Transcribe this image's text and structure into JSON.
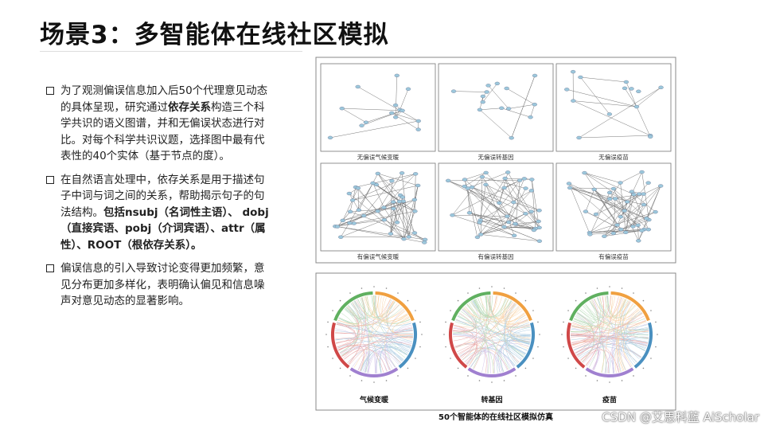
{
  "title": "场景3：多智能体在线社区模拟",
  "bullets": [
    {
      "parts": [
        {
          "text": "为了观测偏误信息加入后50个代理意见动态的具体呈现，研究通过",
          "bold": false
        },
        {
          "text": "依存关系",
          "bold": true
        },
        {
          "text": "构造三个科学共识的语义图谱，并和无偏误状态进行对比。对每个科学共识议题，选择图中最有代表性的40个实体（基于节点的度）。",
          "bold": false
        }
      ]
    },
    {
      "parts": [
        {
          "text": "在自然语言处理中，依存关系是用于描述句子中词与词之间的关系，帮助揭示句子的句法结构。",
          "bold": false
        },
        {
          "text": "包括nsubj（名词性主语）、 dobj（直接宾语、pobj（介词宾语）、attr（属性）、ROOT（根依存关系）。",
          "bold": true
        }
      ]
    },
    {
      "parts": [
        {
          "text": "偏误信息的引入导致讨论变得更加频繁，意见分布更加多样化，表明确认偏见和信息噪声对意见动态的显著影响。",
          "bold": false
        }
      ]
    }
  ],
  "network_figure": {
    "panels": [
      {
        "caption": "无偏误气候变暖"
      },
      {
        "caption": "无偏误转基因"
      },
      {
        "caption": "无偏误疫苗"
      },
      {
        "caption": "有偏误气候变暖"
      },
      {
        "caption": "有偏误转基因"
      },
      {
        "caption": "有偏误疫苗"
      }
    ]
  },
  "chord_figure": {
    "panels": [
      {
        "label": "气候变暖"
      },
      {
        "label": "转基因"
      },
      {
        "label": "疫苗"
      }
    ],
    "caption": "50个智能体的在线社区模拟仿真"
  },
  "watermark": "CSDN @艾思科蓝 AiScholar"
}
